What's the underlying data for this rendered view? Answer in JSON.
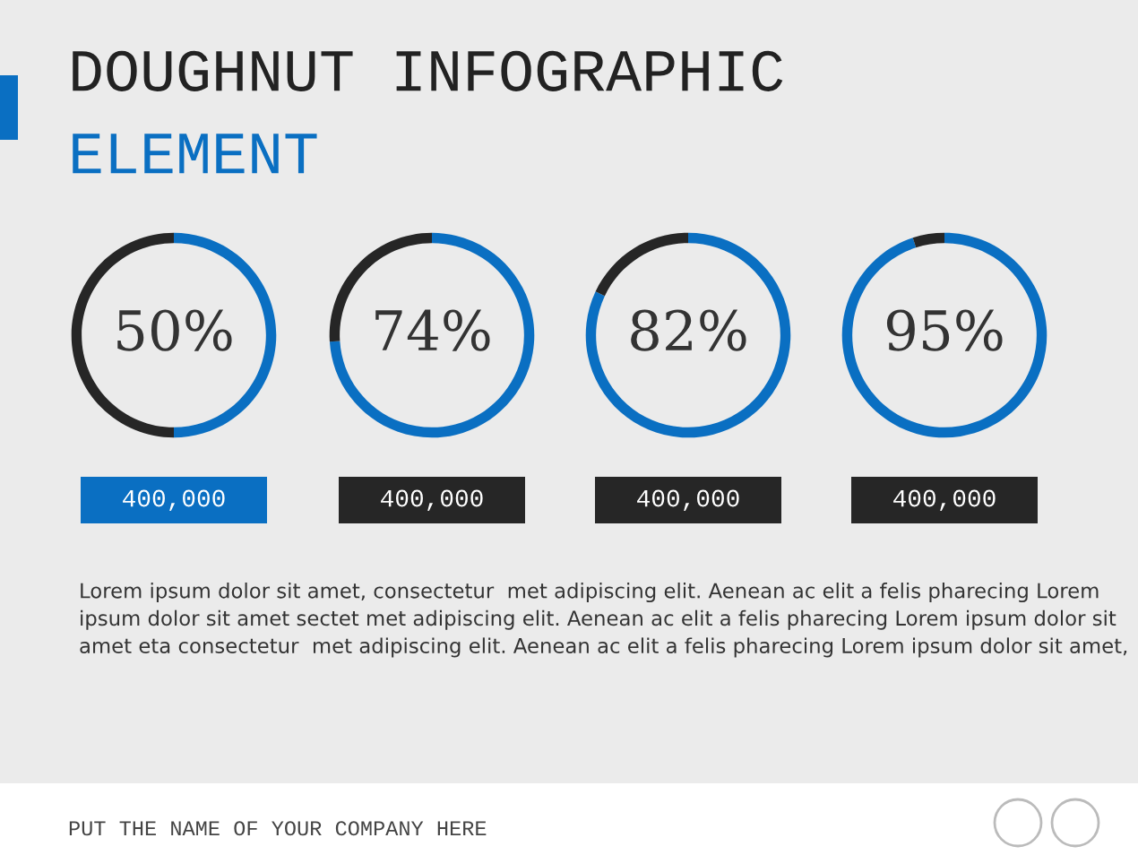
{
  "chart_data": [
    {
      "type": "donut",
      "title": "DOUGHNUT INFOGRAPHIC",
      "subtitle": "ELEMENT",
      "categories": [
        null,
        null
      ],
      "values": [
        50,
        50
      ],
      "colors": [
        "#0a6fc2",
        "#262626"
      ],
      "value_labels": [
        "50%",
        null
      ],
      "annotations": [
        "400,000",
        "Lorem ipsum dolor sit amet, consectetur  met adipiscing elit. Aenean ac elit a felis pharecing Lorem ipsum dolor sit amet sectet met adipiscing elit. Aenean ac elit a felis pharecing Lorem ipsum dolor sit amet eta consectetur  met adipiscing elit. Aenean ac elit a felis pharecing Lorem ipsum dolor sit amet,",
        "PUT THE NAME OF YOUR COMPANY HERE"
      ]
    },
    {
      "type": "donut",
      "categories": [
        null,
        null
      ],
      "values": [
        74,
        26
      ],
      "colors": [
        "#0a6fc2",
        "#262626"
      ],
      "value_labels": [
        "74%",
        null
      ],
      "annotations": [
        "400,000"
      ]
    },
    {
      "type": "donut",
      "categories": [
        null,
        null
      ],
      "values": [
        82,
        18
      ],
      "colors": [
        "#0a6fc2",
        "#262626"
      ],
      "value_labels": [
        "82%",
        null
      ],
      "annotations": [
        "400,000"
      ]
    },
    {
      "type": "donut",
      "categories": [
        null,
        null
      ],
      "values": [
        95,
        5
      ],
      "colors": [
        "#0a6fc2",
        "#262626"
      ],
      "value_labels": [
        "95%",
        null
      ],
      "annotations": [
        "400,000"
      ]
    }
  ]
}
